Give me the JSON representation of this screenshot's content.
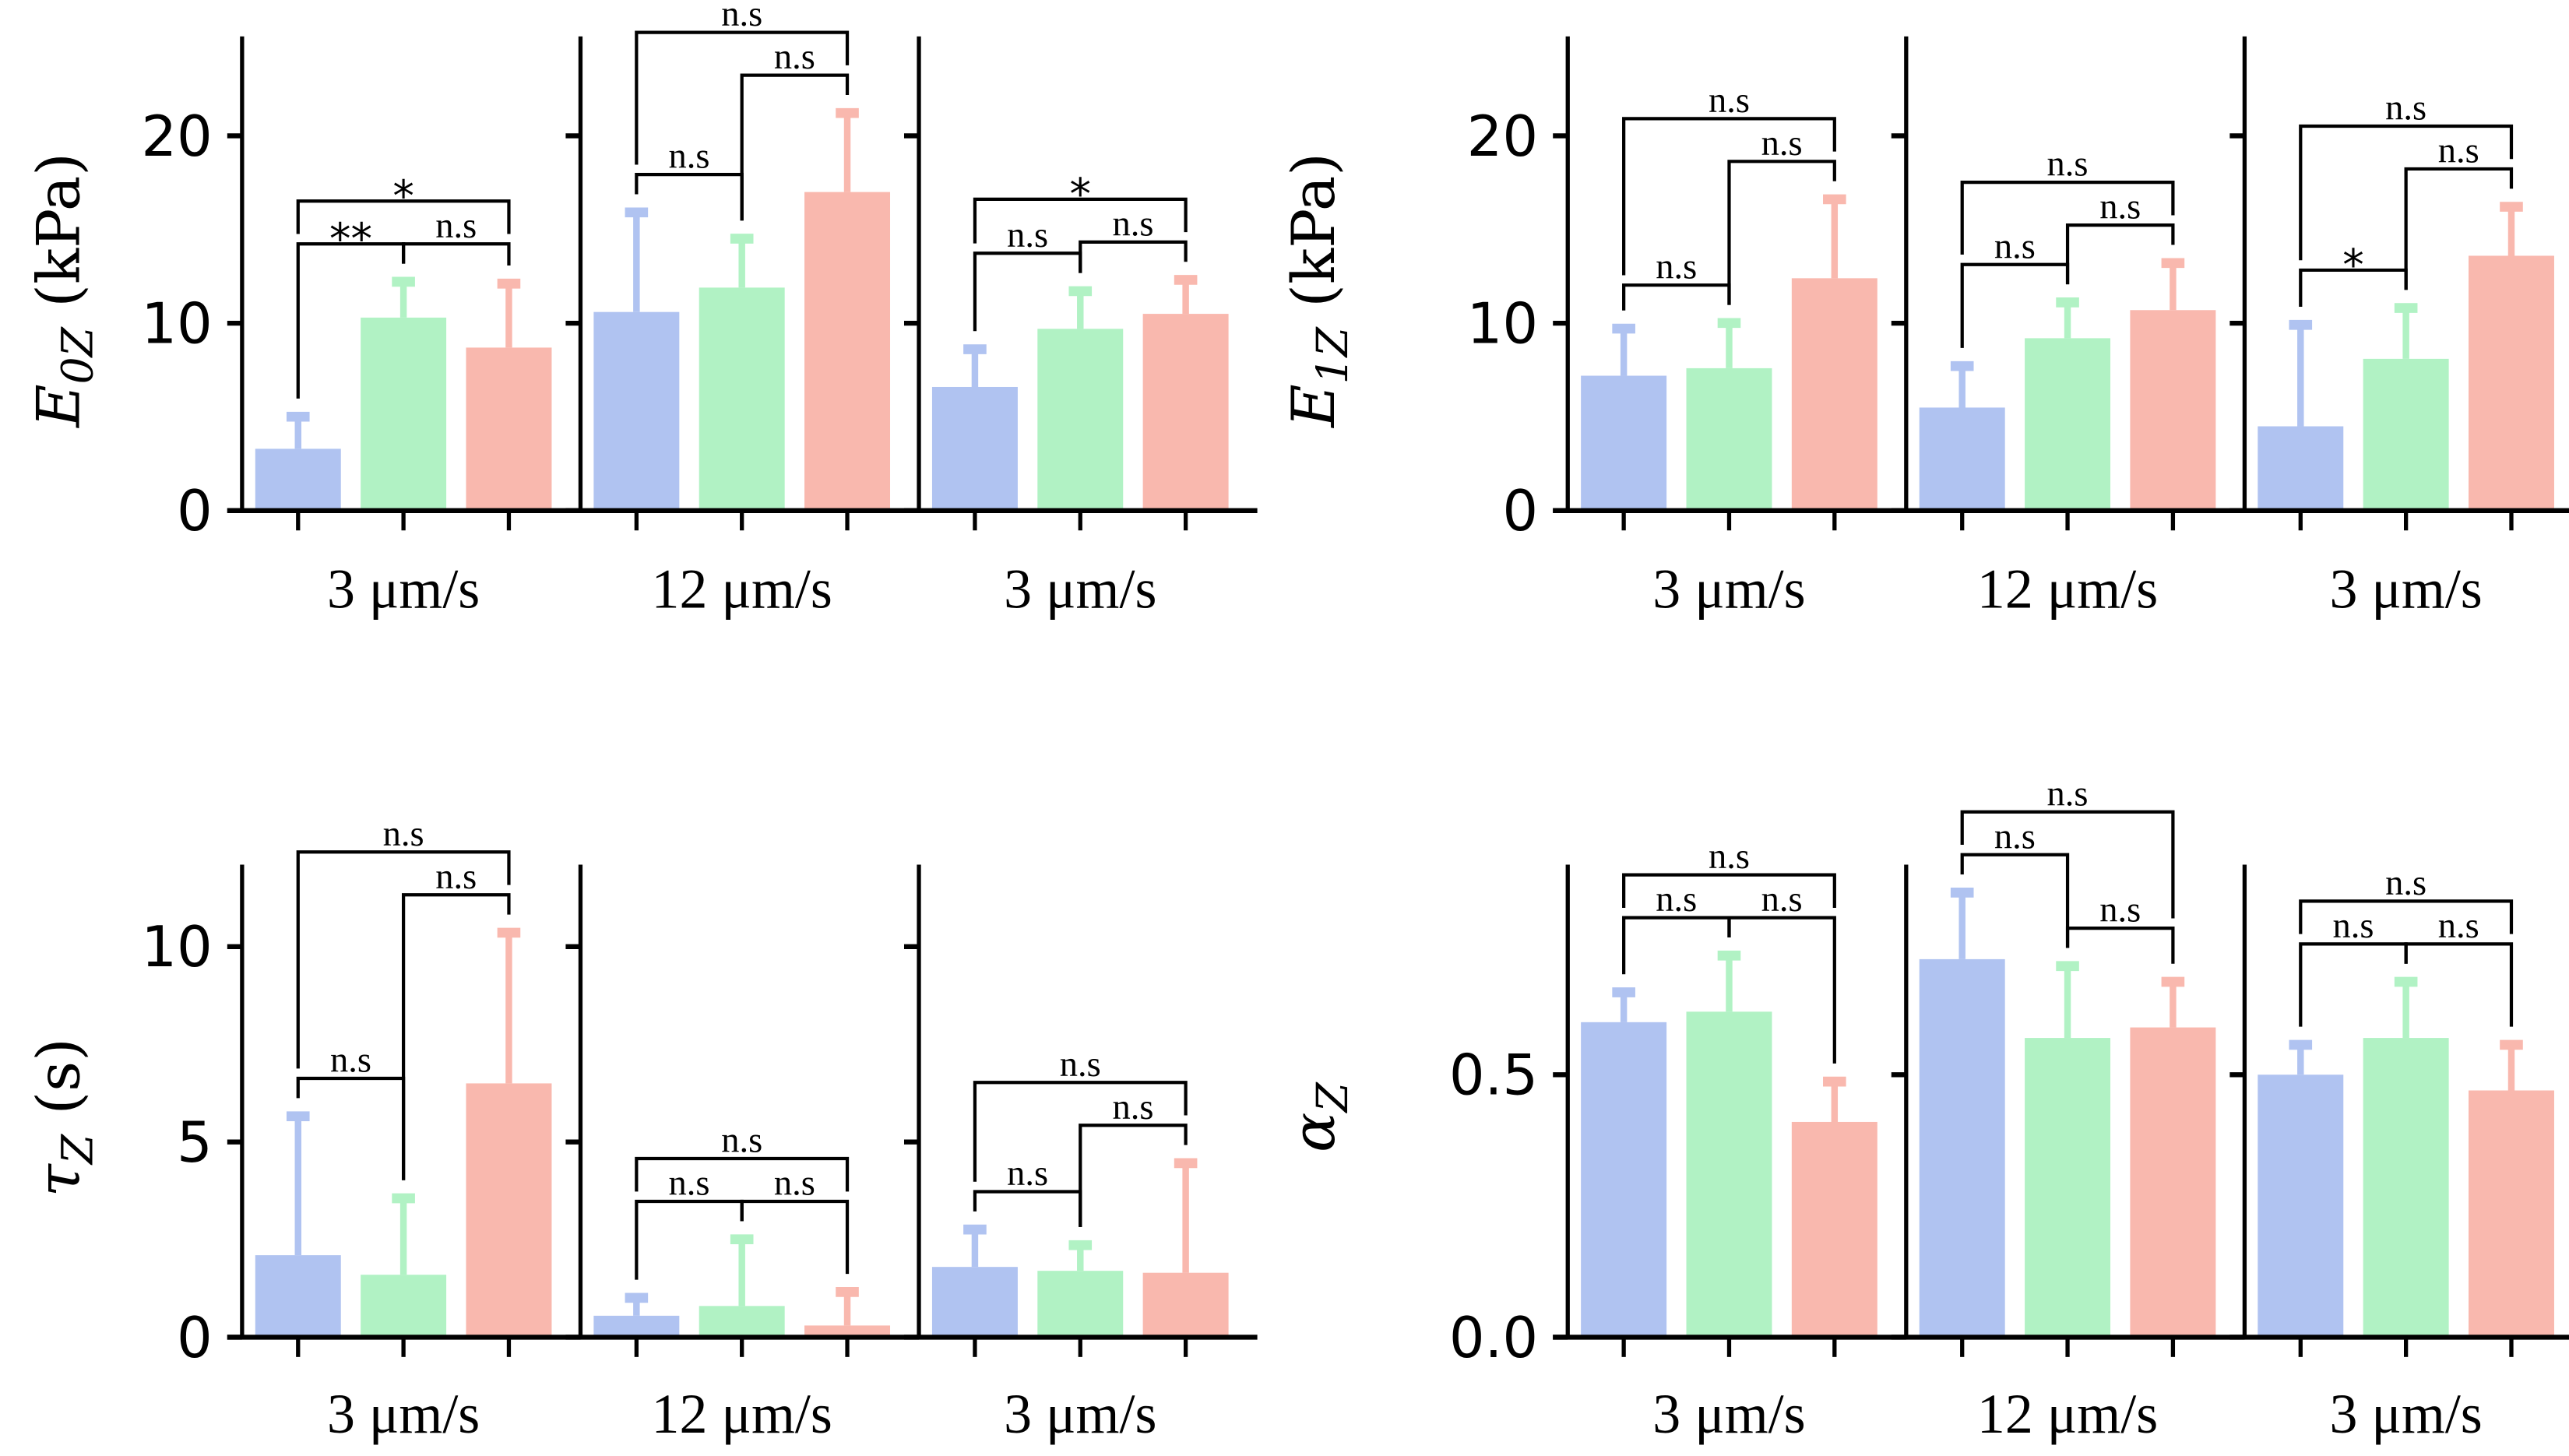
{
  "colors": {
    "blue": "#b0c3f1",
    "green": "#b1f2c4",
    "red": "#f9b8ae",
    "axis": "#000000"
  },
  "chart_data": [
    {
      "type": "bar",
      "ylabel": {
        "main": "E",
        "sub": "0Z",
        "unit": "(kPa)"
      },
      "ylim": [
        0,
        25.3
      ],
      "yticks": [
        0,
        10,
        20
      ],
      "ytick_labels": [
        "0",
        "10",
        "20"
      ],
      "groups": [
        "3 μm/s",
        "12 μm/s",
        "3 μm/s"
      ],
      "values": [
        [
          3.3,
          10.3,
          8.7
        ],
        [
          10.6,
          11.9,
          17.0
        ],
        [
          6.6,
          9.7,
          10.5
        ]
      ],
      "err_top": [
        [
          5.1,
          12.3,
          12.2
        ],
        [
          16.0,
          14.6,
          21.3
        ],
        [
          8.7,
          11.8,
          12.4
        ]
      ],
      "significance": [
        [
          "**",
          "n.s",
          "*"
        ],
        [
          "n.s",
          "n.s",
          "n.s"
        ],
        [
          "n.s",
          "n.s",
          "*"
        ]
      ]
    },
    {
      "type": "bar",
      "ylabel": {
        "main": "E",
        "sub": "1Z",
        "unit": "(kPa)"
      },
      "ylim": [
        0,
        25.3
      ],
      "yticks": [
        0,
        10,
        20
      ],
      "ytick_labels": [
        "0",
        "10",
        "20"
      ],
      "groups": [
        "3 μm/s",
        "12 μm/s",
        "3 μm/s"
      ],
      "values": [
        [
          7.2,
          7.6,
          12.4
        ],
        [
          5.5,
          9.2,
          10.7
        ],
        [
          4.5,
          8.1,
          13.6
        ]
      ],
      "err_top": [
        [
          9.8,
          10.1,
          16.7
        ],
        [
          7.8,
          11.2,
          13.3
        ],
        [
          10.0,
          10.9,
          16.3
        ]
      ],
      "significance": [
        [
          "n.s",
          "n.s",
          "n.s"
        ],
        [
          "n.s",
          "n.s",
          "n.s"
        ],
        [
          "*",
          "n.s",
          "n.s"
        ]
      ]
    },
    {
      "type": "bar",
      "ylabel": {
        "main": "τ",
        "sub": "Z",
        "unit": "(s)"
      },
      "ylim": [
        0,
        12.1
      ],
      "yticks": [
        0,
        5,
        10
      ],
      "ytick_labels": [
        "0",
        "5",
        "10"
      ],
      "groups": [
        "3 μm/s",
        "12 μm/s",
        "3 μm/s"
      ],
      "values": [
        [
          2.1,
          1.6,
          6.5
        ],
        [
          0.55,
          0.8,
          0.3
        ],
        [
          1.8,
          1.7,
          1.65
        ]
      ],
      "err_top": [
        [
          5.7,
          3.6,
          10.4
        ],
        [
          1.05,
          2.55,
          1.2
        ],
        [
          2.8,
          2.4,
          4.5
        ]
      ],
      "significance": [
        [
          "n.s",
          "n.s",
          "n.s"
        ],
        [
          "n.s",
          "n.s",
          "n.s"
        ],
        [
          "n.s",
          "n.s",
          "n.s"
        ]
      ]
    },
    {
      "type": "bar",
      "ylabel": {
        "main": "α",
        "sub": "Z",
        "unit": ""
      },
      "ylim": [
        0,
        0.9
      ],
      "yticks": [
        0,
        0.5
      ],
      "ytick_labels": [
        "0.0",
        "0.5"
      ],
      "groups": [
        "3 μm/s",
        "12 μm/s",
        "3 μm/s"
      ],
      "values": [
        [
          0.6,
          0.62,
          0.41
        ],
        [
          0.72,
          0.57,
          0.59
        ],
        [
          0.5,
          0.57,
          0.47
        ]
      ],
      "err_top": [
        [
          0.66,
          0.73,
          0.49
        ],
        [
          0.85,
          0.71,
          0.68
        ],
        [
          0.56,
          0.68,
          0.56
        ]
      ],
      "significance": [
        [
          "n.s",
          "n.s",
          "n.s"
        ],
        [
          "n.s",
          "n.s",
          "n.s"
        ],
        [
          "n.s",
          "n.s",
          "n.s"
        ]
      ]
    }
  ]
}
